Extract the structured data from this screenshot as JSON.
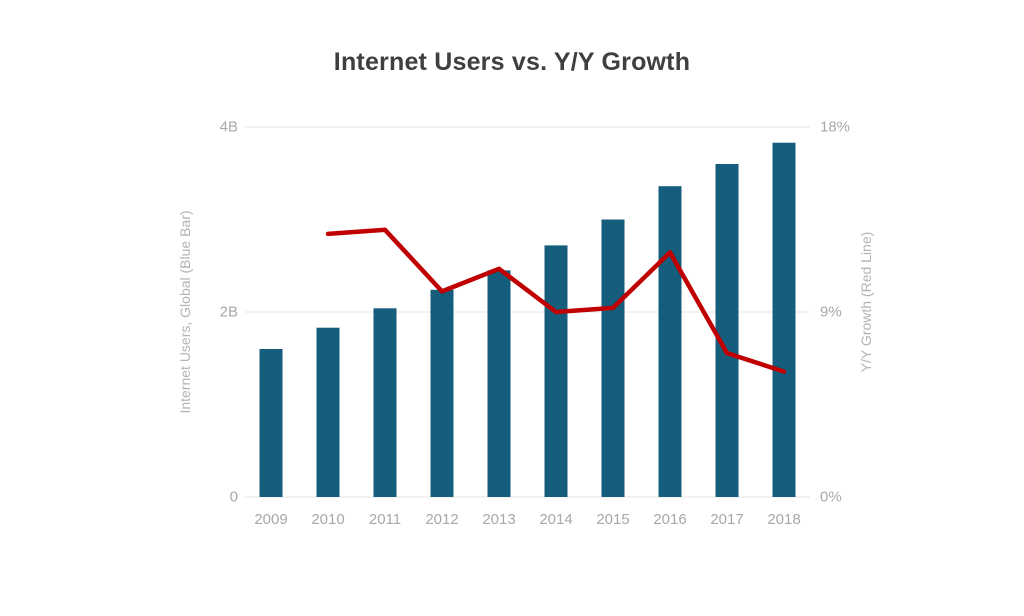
{
  "title": "Internet Users vs. Y/Y Growth",
  "left_axis": {
    "title": "Internet Users, Global (Blue Bar)",
    "ticks": [
      "4B",
      "2B",
      "0"
    ]
  },
  "right_axis": {
    "title": "Y/Y Growth (Red Line)",
    "ticks": [
      "18%",
      "9%",
      "0%"
    ]
  },
  "colors": {
    "bar": "#155d7d",
    "line": "#c00000",
    "grid": "#e6e6e6",
    "tick_text": "#a8a8a8"
  },
  "chart_data": {
    "type": "bar",
    "subtype": "bar+line-combo",
    "title": "Internet Users vs. Y/Y Growth",
    "categories": [
      "2009",
      "2010",
      "2011",
      "2012",
      "2013",
      "2014",
      "2015",
      "2016",
      "2017",
      "2018"
    ],
    "series": [
      {
        "name": "Internet Users, Global (Blue Bar)",
        "type": "bar",
        "axis": "left",
        "unit": "billions",
        "color": "#155d7d",
        "values": [
          1.6,
          1.83,
          2.04,
          2.24,
          2.45,
          2.72,
          3.0,
          3.36,
          3.6,
          3.83
        ]
      },
      {
        "name": "Y/Y Growth (Red Line)",
        "type": "line",
        "axis": "right",
        "unit": "percent",
        "color": "#c00000",
        "values": [
          null,
          12.8,
          13.0,
          10.0,
          11.1,
          9.0,
          9.2,
          11.9,
          7.0,
          6.1
        ]
      }
    ],
    "ylim_left": [
      0,
      4
    ],
    "ylim_right": [
      0,
      18
    ],
    "left_tick_labels": [
      "0",
      "2B",
      "4B"
    ],
    "right_tick_labels": [
      "0%",
      "9%",
      "18%"
    ],
    "xlabel": "",
    "ylabel_left": "Internet Users, Global (Blue Bar)",
    "ylabel_right": "Y/Y Growth (Red Line)",
    "grid": true,
    "legend_position": "none"
  }
}
